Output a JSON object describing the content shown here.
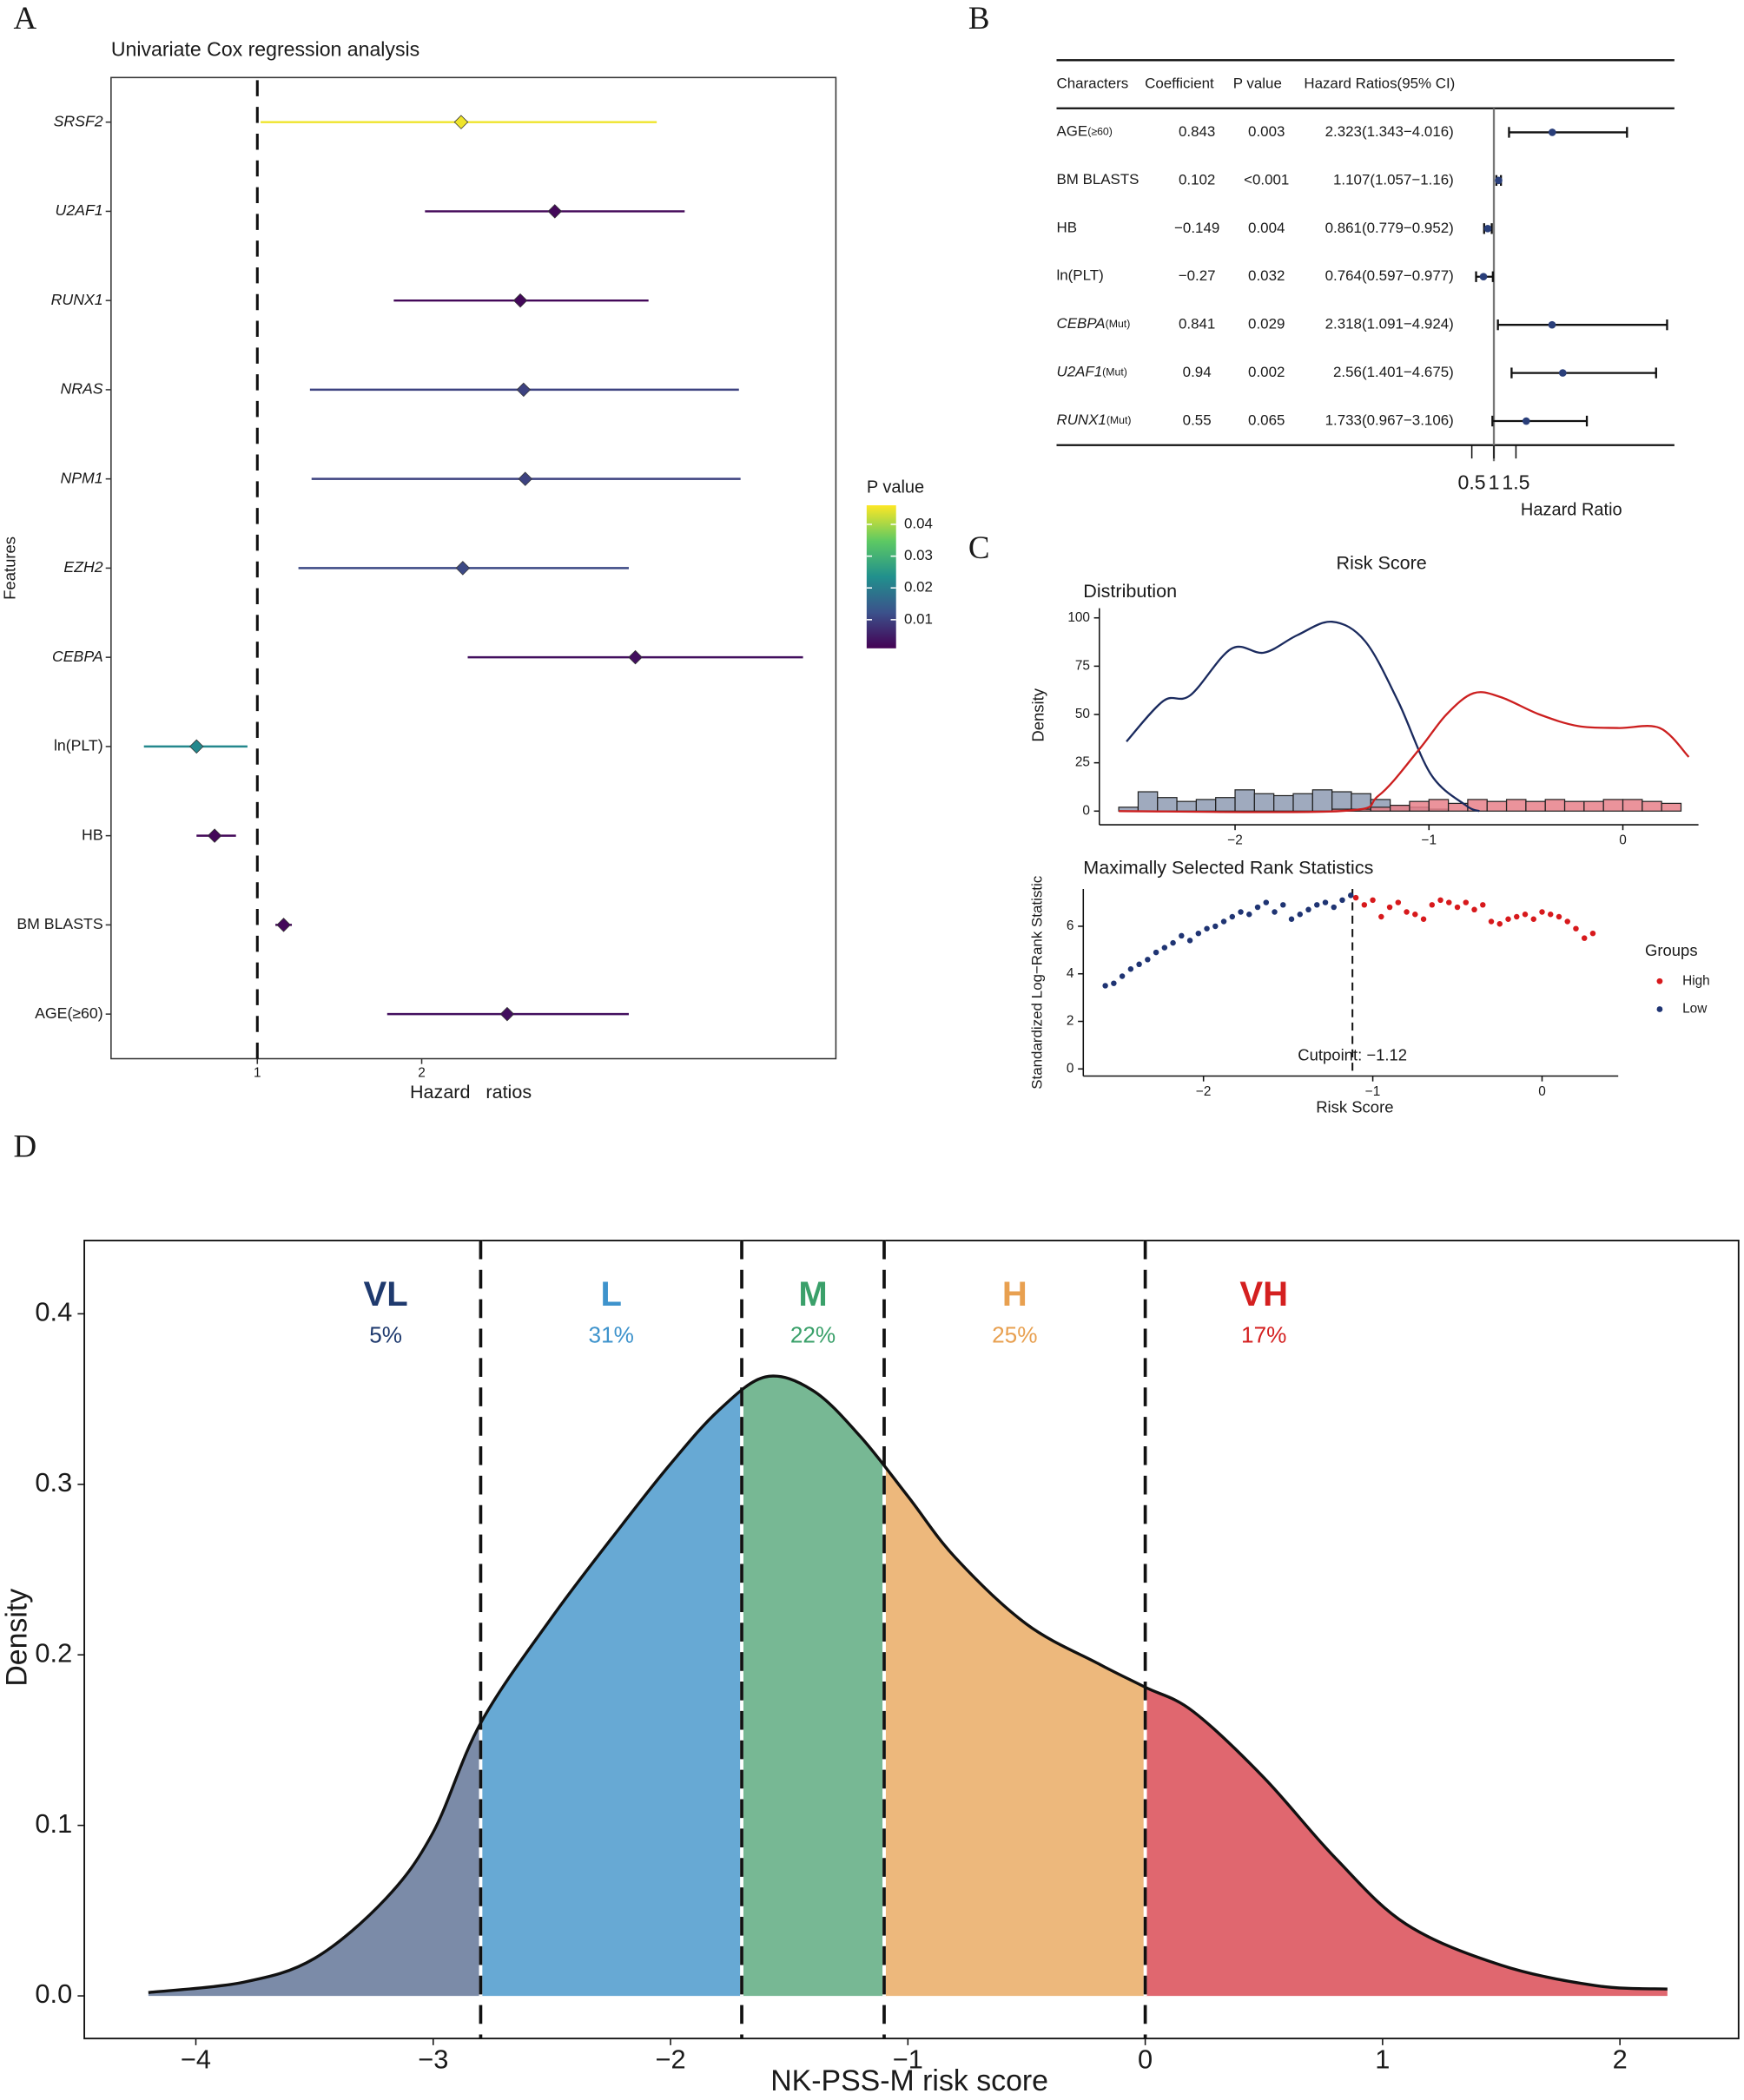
{
  "chart_data": [
    {
      "type": "forest",
      "panel": "A",
      "title": "Univariate Cox regression analysis",
      "x_label": "Hazard   ratios",
      "y_label": "Features",
      "categories": [
        "SRSF2",
        "U2AF1",
        "RUNX1",
        "NRAS",
        "NPM1",
        "EZH2",
        "CEBPA",
        "ln(PLT)",
        "HB",
        "BM BLASTS",
        "AGE(≥60)"
      ],
      "italic": [
        true,
        true,
        true,
        true,
        true,
        true,
        true,
        false,
        false,
        false,
        false
      ],
      "values": [
        2.24,
        2.81,
        2.6,
        2.62,
        2.63,
        2.25,
        3.3,
        0.63,
        0.74,
        1.16,
        2.52
      ],
      "ci_low": [
        1.02,
        2.02,
        1.83,
        1.32,
        1.33,
        1.25,
        2.28,
        0.31,
        0.63,
        1.11,
        1.79
      ],
      "ci_high": [
        3.43,
        3.6,
        3.38,
        3.93,
        3.94,
        3.26,
        4.32,
        0.94,
        0.87,
        1.21,
        3.26
      ],
      "p_values": [
        0.045,
        0.002,
        0.002,
        0.01,
        0.01,
        0.011,
        0.003,
        0.022,
        0.002,
        0.002,
        0.003
      ],
      "ref_line": 1,
      "xlim": [
        0.11,
        4.52
      ],
      "xticks": [
        1,
        2
      ],
      "colorbar": {
        "title": "P value",
        "lim": [
          0.001,
          0.046
        ],
        "ticks": [
          0.01,
          0.02,
          0.03,
          0.04
        ],
        "colormap": [
          "#440154",
          "#3b528b",
          "#21908d",
          "#5dc963",
          "#fde725"
        ]
      }
    },
    {
      "type": "forest_table",
      "panel": "B",
      "columns": [
        "Characters",
        "Coefficient",
        "P value",
        "Hazard Ratios(95% CI)"
      ],
      "rows": [
        {
          "name": "AGE",
          "sub": "(≥60)",
          "italic": false,
          "coefficient": "0.843",
          "p_value": "0.003"
        },
        {
          "name": "BM BLASTS",
          "italic": false,
          "coefficient": "0.102",
          "p_value": "<0.001"
        },
        {
          "name": "HB",
          "italic": false,
          "coefficient": "−0.149",
          "p_value": "0.004"
        },
        {
          "name": "ln(PLT)",
          "italic": false,
          "coefficient": "−0.27",
          "p_value": "0.032"
        },
        {
          "name": "CEBPA",
          "sub": "(Mut)",
          "italic": true,
          "coefficient": "0.841",
          "p_value": "0.029"
        },
        {
          "name": "U2AF1",
          "sub": "(Mut)",
          "italic": true,
          "coefficient": "0.94",
          "p_value": "0.002"
        },
        {
          "name": "RUNX1",
          "sub": "(Mut)",
          "italic": true,
          "coefficient": "0.55",
          "p_value": "0.065"
        }
      ],
      "values": [
        2.323,
        1.107,
        0.861,
        0.764,
        2.318,
        2.56,
        1.733
      ],
      "ci_low": [
        1.343,
        1.057,
        0.779,
        0.597,
        1.091,
        1.401,
        0.967
      ],
      "ci_high": [
        4.016,
        1.16,
        0.952,
        0.977,
        4.924,
        4.675,
        3.106
      ],
      "value_labels": [
        "2.323(1.343−4.016)",
        "1.107(1.057−1.16)",
        "0.861(0.779−0.952)",
        "0.764(0.597−0.977)",
        "2.318(1.091−4.924)",
        "2.56(1.401−4.675)",
        "1.733(0.967−3.106)"
      ],
      "color": "#2a3f7a",
      "ref_line": 1,
      "xlim": [
        0.03,
        5.09
      ],
      "xticks": [
        0.5,
        1,
        1.5
      ],
      "x_label": "Hazard Ratio"
    },
    {
      "type": "histogram_density",
      "panel": "C",
      "title": "Risk Score",
      "subtitle": "Distribution",
      "y_label": "Density",
      "bins": [
        -2.6,
        -2.5,
        -2.4,
        -2.3,
        -2.2,
        -2.1,
        -2.0,
        -1.9,
        -1.8,
        -1.7,
        -1.6,
        -1.5,
        -1.4,
        -1.3,
        -1.2,
        -1.1,
        -1.0,
        -0.9,
        -0.8,
        -0.7,
        -0.6,
        -0.5,
        -0.4,
        -0.3,
        -0.2,
        -0.1,
        0.0,
        0.1,
        0.2,
        0.3
      ],
      "series": [
        {
          "color": "#8e9bb3",
          "values": [
            2,
            10,
            7,
            5,
            6,
            7,
            11,
            9,
            8,
            9,
            11,
            10,
            9,
            6,
            3,
            2,
            1,
            0,
            0,
            0,
            0,
            0,
            0,
            0,
            0,
            0,
            0,
            0,
            0
          ]
        },
        {
          "color": "#e8808a",
          "values": [
            0,
            0,
            0,
            0,
            0,
            0,
            0,
            0,
            0,
            0,
            0,
            1,
            1,
            2,
            3,
            5,
            6,
            4,
            6,
            5,
            6,
            5,
            6,
            5,
            5,
            6,
            6,
            5,
            4
          ]
        }
      ],
      "curves": [
        {
          "color": "#1a2a5e",
          "x": [
            -2.56,
            -2.37,
            -2.23,
            -2.02,
            -1.85,
            -1.68,
            -1.5,
            -1.33,
            -1.16,
            -0.99,
            -0.81,
            -0.74
          ],
          "values": [
            36,
            57,
            60,
            84,
            82,
            91,
            98,
            88,
            57,
            19,
            3,
            0
          ]
        },
        {
          "color": "#cc1f1f",
          "x": [
            -2.6,
            -1.46,
            -1.26,
            -1.05,
            -0.91,
            -0.77,
            -0.63,
            -0.43,
            -0.23,
            -0.02,
            0.19,
            0.34
          ],
          "values": [
            0,
            0,
            8,
            32,
            50,
            61,
            59,
            50,
            44,
            43,
            43,
            28
          ]
        }
      ],
      "xlim": [
        -2.7,
        0.39
      ],
      "ylim": [
        -5,
        105
      ],
      "xticks": [
        {
          "value": -2,
          "label": "−2"
        },
        {
          "value": -1,
          "label": "−1"
        },
        0
      ],
      "yticks": [
        0,
        25,
        50,
        75,
        100
      ]
    },
    {
      "type": "scatter",
      "title": "Maximally Selected Rank Statistics",
      "x_label": "Risk Score",
      "y_label": "Standardized Log−Rank Statistic",
      "legend_title": "Groups",
      "series": [
        {
          "name": "High",
          "color": "#d7191c",
          "x": [
            -1.1,
            -1.05,
            -1.0,
            -0.95,
            -0.9,
            -0.85,
            -0.8,
            -0.75,
            -0.7,
            -0.65,
            -0.6,
            -0.55,
            -0.5,
            -0.45,
            -0.4,
            -0.35,
            -0.3,
            -0.25,
            -0.2,
            -0.15,
            -0.1,
            -0.05,
            0.0,
            0.05,
            0.1,
            0.15,
            0.2,
            0.25,
            0.3
          ],
          "values": [
            7.2,
            6.9,
            7.1,
            6.4,
            6.8,
            7.0,
            6.6,
            6.5,
            6.3,
            6.9,
            7.1,
            7.0,
            6.8,
            7.0,
            6.7,
            6.9,
            6.2,
            6.1,
            6.3,
            6.4,
            6.5,
            6.3,
            6.6,
            6.5,
            6.4,
            6.2,
            5.9,
            5.5,
            5.7
          ]
        },
        {
          "name": "Low",
          "color": "#1f3473",
          "x": [
            -2.58,
            -2.53,
            -2.48,
            -2.43,
            -2.38,
            -2.33,
            -2.28,
            -2.23,
            -2.18,
            -2.13,
            -2.08,
            -2.03,
            -1.98,
            -1.93,
            -1.88,
            -1.83,
            -1.78,
            -1.73,
            -1.68,
            -1.63,
            -1.58,
            -1.53,
            -1.48,
            -1.43,
            -1.38,
            -1.33,
            -1.28,
            -1.23,
            -1.18,
            -1.13
          ],
          "values": [
            3.5,
            3.6,
            3.9,
            4.2,
            4.4,
            4.6,
            4.9,
            5.1,
            5.3,
            5.6,
            5.4,
            5.7,
            5.9,
            6.0,
            6.2,
            6.4,
            6.6,
            6.5,
            6.8,
            7.0,
            6.6,
            6.9,
            6.3,
            6.5,
            6.7,
            6.9,
            7.0,
            6.8,
            7.1,
            7.3
          ]
        }
      ],
      "cutpoint": -1.12,
      "cutpoint_label": "Cutpoint: −1.12",
      "xlim": [
        -2.71,
        0.45
      ],
      "ylim": [
        -0.3,
        7.57
      ],
      "xticks": [
        {
          "value": -2,
          "label": "−2"
        },
        {
          "value": -1,
          "label": "−1"
        },
        0
      ],
      "yticks": [
        0,
        2,
        4,
        6
      ]
    },
    {
      "type": "density_segments",
      "panel": "D",
      "x_label": "NK-PSS-M risk score",
      "y_label": "Density",
      "x": [
        -4.2,
        -3.8,
        -3.5,
        -3.2,
        -3.0,
        -2.8,
        -2.5,
        -2.2,
        -2.0,
        -1.8,
        -1.6,
        -1.4,
        -1.2,
        -1.0,
        -0.8,
        -0.5,
        -0.2,
        0.0,
        0.2,
        0.5,
        0.8,
        1.1,
        1.5,
        1.9,
        2.2
      ],
      "values": [
        0.002,
        0.008,
        0.022,
        0.057,
        0.096,
        0.16,
        0.222,
        0.277,
        0.312,
        0.343,
        0.363,
        0.355,
        0.328,
        0.293,
        0.257,
        0.218,
        0.195,
        0.181,
        0.167,
        0.128,
        0.081,
        0.042,
        0.018,
        0.006,
        0.004
      ],
      "cutpoints": [
        -2.8,
        -1.7,
        -1.1,
        0
      ],
      "groups": [
        {
          "name": "VL",
          "share": "5%",
          "color": "#7b8ba8",
          "label_color": "#1f3a6e"
        },
        {
          "name": "L",
          "share": "31%",
          "color": "#67a9d4",
          "label_color": "#3e93cc"
        },
        {
          "name": "M",
          "share": "22%",
          "color": "#77b894",
          "label_color": "#3aa06a"
        },
        {
          "name": "H",
          "share": "25%",
          "color": "#edb87c",
          "label_color": "#e8a050"
        },
        {
          "name": "VH",
          "share": "17%",
          "color": "#e0676f",
          "label_color": "#d42020"
        }
      ],
      "xlim": [
        -4.47,
        2.5
      ],
      "ylim": [
        -0.025,
        0.443
      ],
      "xticks": [
        {
          "value": -4,
          "label": "−4"
        },
        {
          "value": -3,
          "label": "−3"
        },
        {
          "value": -2,
          "label": "−2"
        },
        {
          "value": -1,
          "label": "−1"
        },
        0,
        1,
        2
      ],
      "yticks": [
        {
          "value": 0,
          "label": "0.0"
        },
        0.1,
        0.2,
        0.3,
        0.4
      ]
    }
  ]
}
